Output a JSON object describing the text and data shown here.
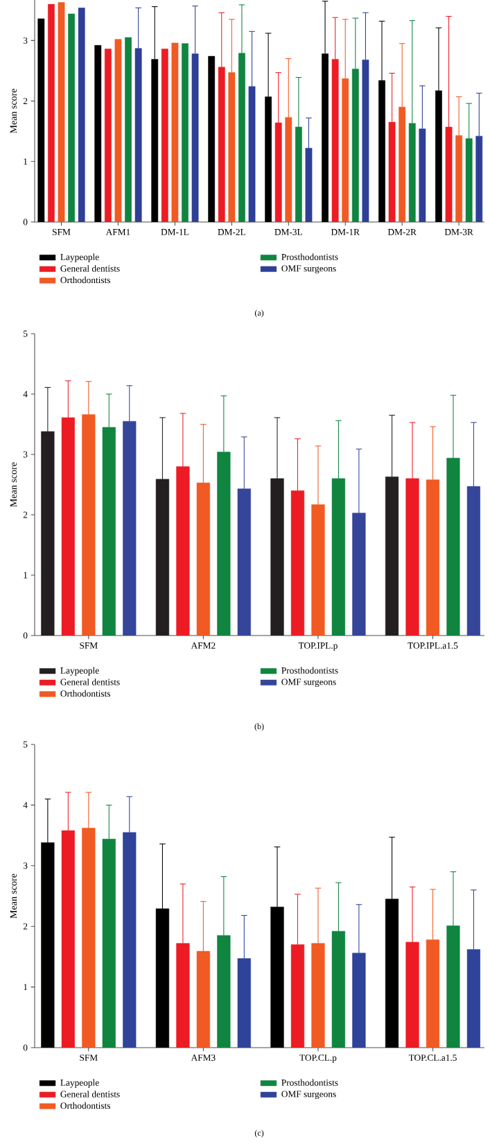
{
  "chart_data": [
    {
      "type": "bar",
      "ylabel": "Mean score",
      "categories": [
        "SFM",
        "AFM1",
        "DM-1L",
        "DM-2L",
        "DM-3L",
        "DM-1R",
        "DM-2R",
        "DM-3R"
      ],
      "ylim": [
        0,
        3.67
      ],
      "yticks": [
        0,
        1,
        2,
        3
      ],
      "legend": "bottom",
      "annotations": [
        "(a)"
      ],
      "series": [
        {
          "name": "Laypeople",
          "color": "#000000",
          "values": [
            3.36,
            2.92,
            2.69,
            2.74,
            2.07,
            2.78,
            2.34,
            2.17
          ],
          "errors": [
            null,
            null,
            [
              2.69,
              3.56
            ],
            null,
            [
              2.07,
              3.12
            ],
            [
              2.78,
              3.65
            ],
            [
              2.34,
              3.32
            ],
            [
              2.17,
              3.21
            ]
          ]
        },
        {
          "name": "General dentists",
          "color": "#ed1c24",
          "values": [
            3.6,
            2.86,
            2.86,
            2.56,
            1.64,
            2.69,
            1.65,
            1.57
          ],
          "errors": [
            null,
            null,
            null,
            [
              2.56,
              3.46
            ],
            [
              1.64,
              2.47
            ],
            [
              2.69,
              3.38
            ],
            [
              1.65,
              2.46
            ],
            [
              1.57,
              3.4
            ]
          ]
        },
        {
          "name": "Orthodontists",
          "color": "#f15a22",
          "values": [
            3.63,
            3.02,
            2.96,
            2.47,
            1.73,
            2.37,
            1.9,
            1.43
          ],
          "errors": [
            null,
            null,
            null,
            [
              2.47,
              3.35
            ],
            [
              1.73,
              2.7
            ],
            [
              2.37,
              3.35
            ],
            [
              1.9,
              2.95
            ],
            [
              1.43,
              2.07
            ]
          ]
        },
        {
          "name": "Prosthodontists",
          "color": "#0f8540",
          "values": [
            3.44,
            3.05,
            2.95,
            2.79,
            1.57,
            2.53,
            1.63,
            1.38
          ],
          "errors": [
            null,
            null,
            null,
            [
              2.79,
              3.59
            ],
            [
              1.57,
              2.39
            ],
            [
              2.53,
              3.37
            ],
            [
              1.63,
              3.33
            ],
            [
              1.38,
              1.96
            ]
          ]
        },
        {
          "name": "OMF surgeons",
          "color": "#2e3f98",
          "values": [
            3.54,
            2.87,
            2.78,
            2.24,
            1.22,
            2.68,
            1.54,
            1.42
          ],
          "errors": [
            null,
            [
              2.87,
              3.54
            ],
            [
              2.78,
              3.57
            ],
            [
              2.24,
              3.15
            ],
            [
              1.22,
              1.72
            ],
            [
              2.68,
              3.46
            ],
            [
              1.54,
              2.25
            ],
            [
              1.42,
              2.13
            ]
          ]
        }
      ]
    },
    {
      "type": "bar",
      "ylabel": "Mean score",
      "categories": [
        "SFM",
        "AFM2",
        "TOP.IPL.p",
        "TOP.IPL.a1.5"
      ],
      "ylim": [
        0,
        5
      ],
      "yticks": [
        0,
        1,
        2,
        3,
        4,
        5
      ],
      "legend": "bottom",
      "annotations": [
        "(b)"
      ],
      "series": [
        {
          "name": "Laypeople",
          "color": "#231f20",
          "values": [
            3.38,
            2.59,
            2.6,
            2.63
          ],
          "errors": [
            [
              3.38,
              4.11
            ],
            [
              2.59,
              3.61
            ],
            [
              2.6,
              3.61
            ],
            [
              2.63,
              3.65
            ]
          ]
        },
        {
          "name": "General dentists",
          "color": "#ed1c24",
          "values": [
            3.61,
            2.8,
            2.4,
            2.6
          ],
          "errors": [
            [
              3.61,
              4.22
            ],
            [
              2.8,
              3.68
            ],
            [
              2.4,
              3.26
            ],
            [
              2.6,
              3.53
            ]
          ]
        },
        {
          "name": "Orthodontists",
          "color": "#f15a22",
          "values": [
            3.66,
            2.53,
            2.17,
            2.58
          ],
          "errors": [
            [
              3.66,
              4.21
            ],
            [
              2.53,
              3.5
            ],
            [
              2.17,
              3.14
            ],
            [
              2.58,
              3.46
            ]
          ]
        },
        {
          "name": "Prosthodontists",
          "color": "#0f8540",
          "values": [
            3.45,
            3.04,
            2.6,
            2.94
          ],
          "errors": [
            [
              3.45,
              4.0
            ],
            [
              3.04,
              3.97
            ],
            [
              2.6,
              3.56
            ],
            [
              2.94,
              3.98
            ]
          ]
        },
        {
          "name": "OMF surgeons",
          "color": "#354599",
          "values": [
            3.55,
            2.43,
            2.03,
            2.47
          ],
          "errors": [
            [
              3.55,
              4.14
            ],
            [
              2.43,
              3.29
            ],
            [
              2.03,
              3.09
            ],
            [
              2.47,
              3.53
            ]
          ]
        }
      ]
    },
    {
      "type": "bar",
      "ylabel": "Mean score",
      "categories": [
        "SFM",
        "AFM3",
        "TOP.CL.p",
        "TOP.CL.a1.5"
      ],
      "ylim": [
        0,
        5
      ],
      "yticks": [
        0,
        1,
        2,
        3,
        4,
        5
      ],
      "legend": "bottom",
      "annotations": [
        "(c)"
      ],
      "series": [
        {
          "name": "Laypeople",
          "color": "#000000",
          "values": [
            3.38,
            2.29,
            2.32,
            2.45
          ],
          "errors": [
            [
              3.38,
              4.1
            ],
            [
              2.29,
              3.36
            ],
            [
              2.32,
              3.31
            ],
            [
              2.45,
              3.47
            ]
          ]
        },
        {
          "name": "General dentists",
          "color": "#ed1c24",
          "values": [
            3.58,
            1.72,
            1.7,
            1.74
          ],
          "errors": [
            [
              3.58,
              4.21
            ],
            [
              1.72,
              2.7
            ],
            [
              1.7,
              2.53
            ],
            [
              1.74,
              2.65
            ]
          ]
        },
        {
          "name": "Orthodontists",
          "color": "#f15a22",
          "values": [
            3.62,
            1.59,
            1.72,
            1.78
          ],
          "errors": [
            [
              3.62,
              4.21
            ],
            [
              1.59,
              2.41
            ],
            [
              1.72,
              2.63
            ],
            [
              1.78,
              2.61
            ]
          ]
        },
        {
          "name": "Prosthodontists",
          "color": "#0f8540",
          "values": [
            3.44,
            1.85,
            1.92,
            2.01
          ],
          "errors": [
            [
              3.44,
              4.0
            ],
            [
              1.85,
              2.82
            ],
            [
              1.92,
              2.72
            ],
            [
              2.01,
              2.9
            ]
          ]
        },
        {
          "name": "OMF surgeons",
          "color": "#2e4399",
          "values": [
            3.55,
            1.47,
            1.56,
            1.62
          ],
          "errors": [
            [
              3.55,
              4.14
            ],
            [
              1.47,
              2.18
            ],
            [
              1.56,
              2.36
            ],
            [
              1.62,
              2.6
            ]
          ]
        }
      ]
    }
  ]
}
